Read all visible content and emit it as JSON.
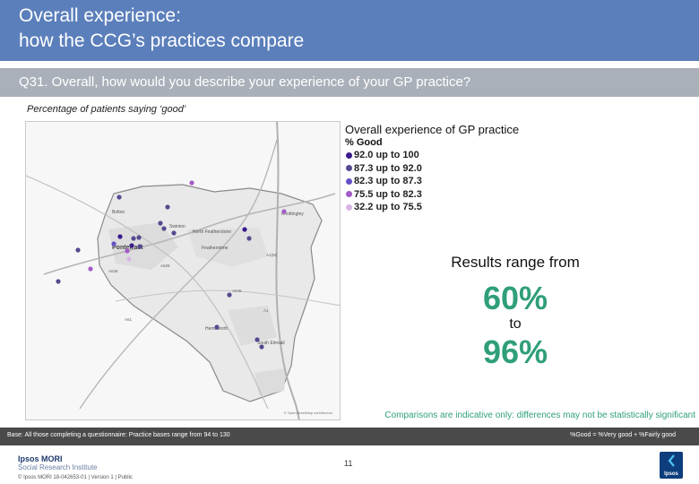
{
  "header": {
    "title_line1": "Overall experience:",
    "title_line2": "how the CCG’s practices compare"
  },
  "question": {
    "text": "Q31. Overall, how would you describe your experience of your GP practice?"
  },
  "subtitle": "Percentage of patients saying ‘good’",
  "legend": {
    "title": "Overall experience of GP practice",
    "subtitle": "% Good",
    "bands": [
      {
        "label": "92.0 up to 100",
        "color": "#3a1a8c"
      },
      {
        "label": "87.3 up to 92.0",
        "color": "#554a90"
      },
      {
        "label": "82.3 up to 87.3",
        "color": "#6650c8"
      },
      {
        "label": "75.5 up to 82.3",
        "color": "#a45ac8"
      },
      {
        "label": "32.2 up to 75.5",
        "color": "#d7b6e4"
      }
    ]
  },
  "map": {
    "place_labels": [
      "Bolton",
      "Swinton",
      "North Featherstone",
      "Featherstone",
      "Pontefract",
      "Knottingley",
      "Hemsworth",
      "South Elmsall"
    ],
    "road_labels": [
      "A638",
      "A628",
      "A645",
      "A628",
      "A61",
      "A1",
      "A1(M)"
    ],
    "copyright": "© OpenStreetMap contributors"
  },
  "range": {
    "label": "Results range from",
    "low": "60%",
    "to": "to",
    "high": "96%"
  },
  "comparisons_note": "Comparisons are indicative only: differences may not be statistically significant",
  "base": {
    "text": "Base: All those completing a questionnaire: Practice bases range from 94 to 130",
    "good_definition": "%Good = %Very good + %Fairly good"
  },
  "footer": {
    "brand_line1": "Ipsos MORI",
    "brand_line2": "Social Research Institute",
    "meta": "© Ipsos MORI     18-042653-01 | Version 1 | Public",
    "page_number": "11",
    "logo_text": "Ipsos"
  }
}
